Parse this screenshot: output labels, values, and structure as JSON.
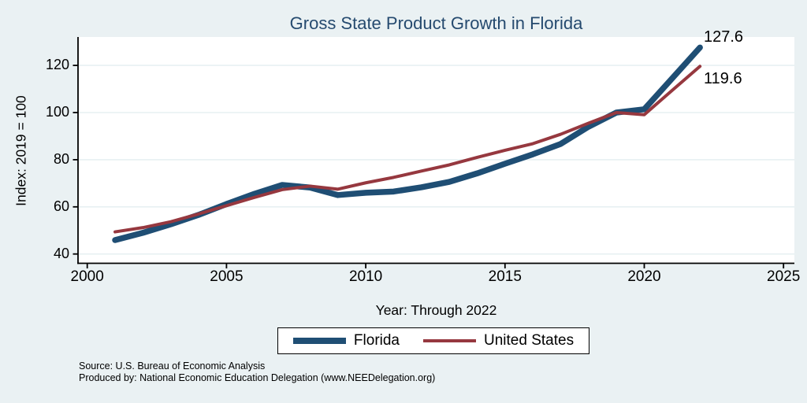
{
  "title": "Gross State Product Growth in Florida",
  "colors": {
    "background": "#EAF1F3",
    "plot_background": "#FFFFFF",
    "gridline": "#E7F0F2",
    "axis": "#000000",
    "title_text": "#254A6F",
    "florida_line": "#1F4E74",
    "us_line": "#96383F"
  },
  "source_note": {
    "line1": "Source: U.S. Bureau of Economic Analysis",
    "line2": "Produced by: National Economic Education Delegation (www.NEEDelegation.org)"
  },
  "chart_data": {
    "type": "line",
    "title": "Gross State Product Growth in Florida",
    "xlabel": "Year: Through 2022",
    "ylabel": "Index: 2019 = 100",
    "grid": true,
    "legend_position": "bottom",
    "xlim": [
      2000,
      2025
    ],
    "ylim": [
      33,
      135
    ],
    "x_ticks": [
      2000,
      2005,
      2010,
      2015,
      2020,
      2025
    ],
    "y_ticks": [
      40,
      60,
      80,
      100,
      120
    ],
    "x": [
      2001,
      2002,
      2003,
      2004,
      2005,
      2006,
      2007,
      2008,
      2009,
      2010,
      2011,
      2012,
      2013,
      2014,
      2015,
      2016,
      2017,
      2018,
      2019,
      2020,
      2021,
      2022
    ],
    "series": [
      {
        "name": "Florida",
        "color": "#1F4E74",
        "line_width": 7.5,
        "values": [
          45.9,
          49.0,
          52.6,
          56.6,
          61.2,
          65.5,
          69.3,
          68.2,
          65.0,
          66.0,
          66.5,
          68.3,
          70.6,
          74.2,
          78.3,
          82.3,
          86.7,
          94.0,
          100.0,
          101.4,
          114.5,
          127.6
        ]
      },
      {
        "name": "United States",
        "color": "#96383F",
        "line_width": 4,
        "values": [
          49.4,
          51.2,
          53.7,
          57.0,
          60.5,
          64.0,
          67.3,
          68.8,
          67.5,
          70.2,
          72.5,
          75.2,
          77.8,
          81.0,
          84.0,
          86.8,
          90.8,
          95.5,
          100.0,
          99.1,
          109.4,
          119.6
        ]
      }
    ],
    "end_labels": {
      "florida": "127.6",
      "us": "119.6"
    }
  }
}
